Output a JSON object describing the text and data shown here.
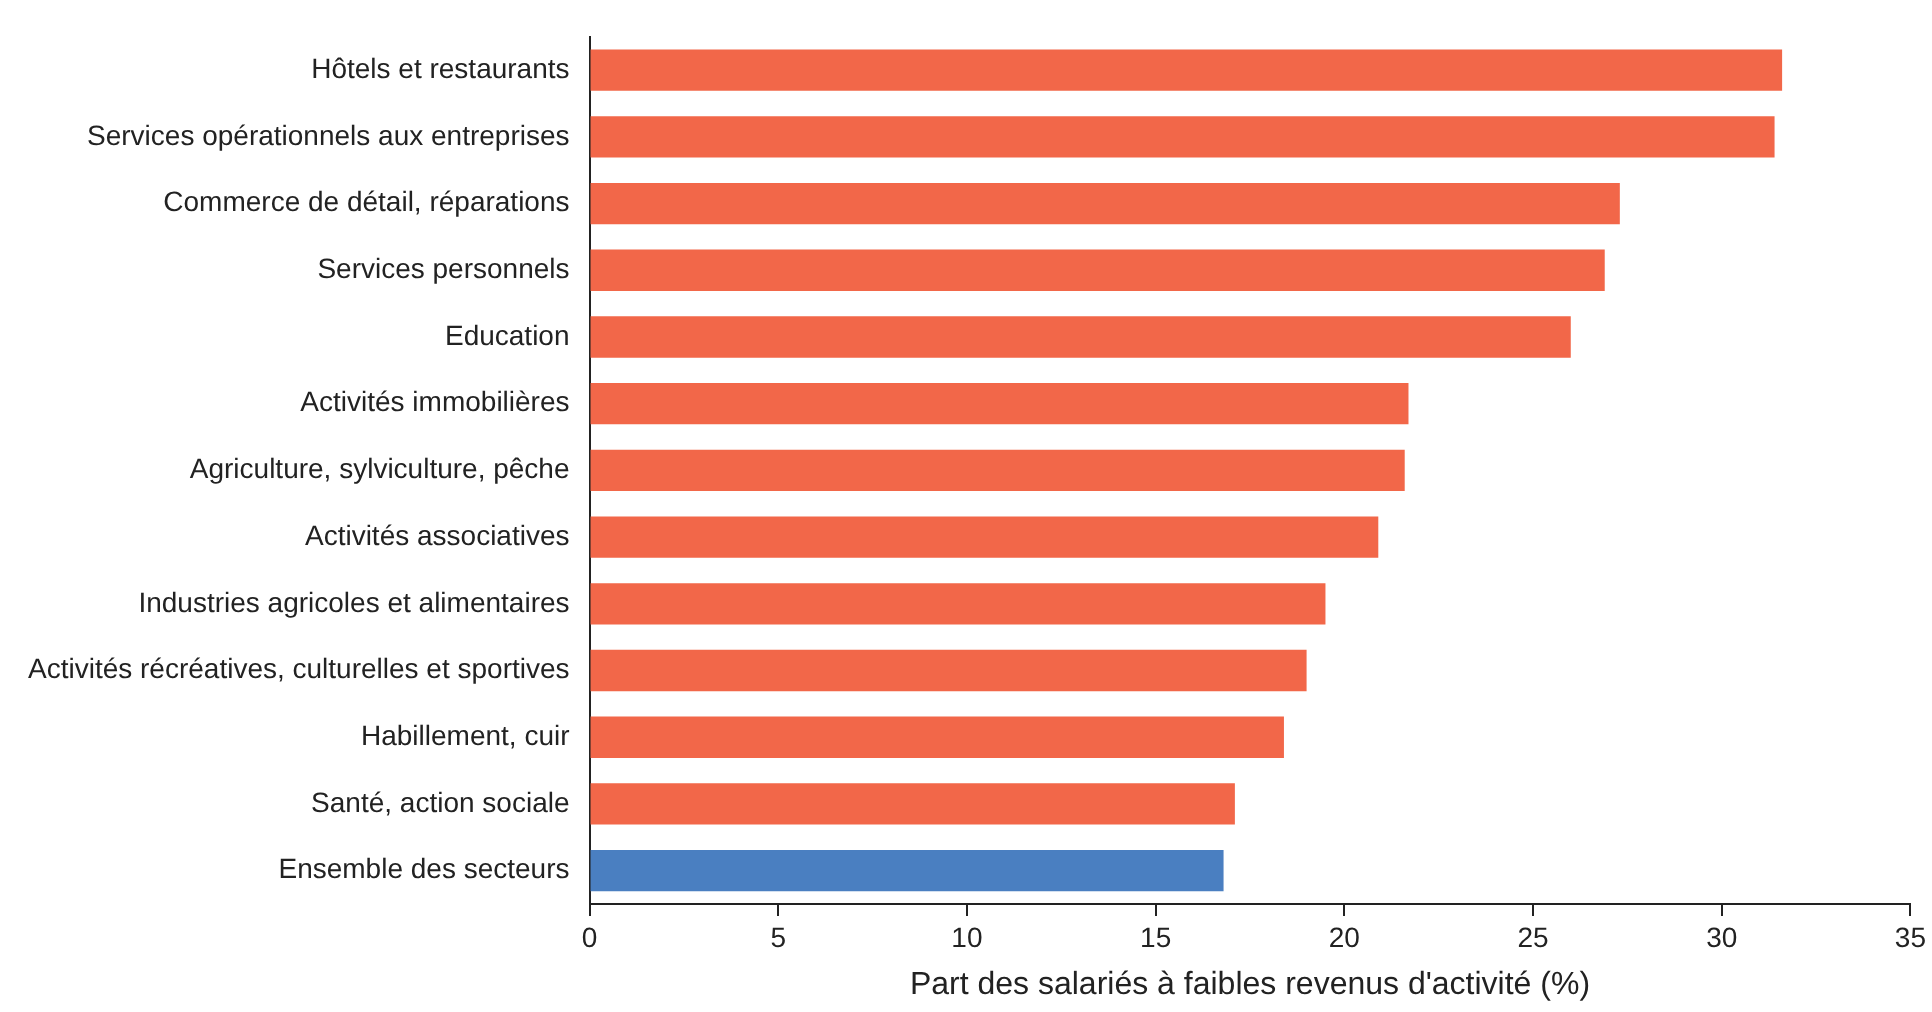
{
  "chart_data": {
    "type": "bar",
    "orientation": "horizontal",
    "xlabel": "Part des salariés à faibles revenus d'activité (%)",
    "categories": [
      "Hôtels et restaurants",
      "Services opérationnels aux entreprises",
      "Commerce de détail, réparations",
      "Services personnels",
      "Education",
      "Activités immobilières",
      "Agriculture, sylviculture, pêche",
      "Activités associatives",
      "Industries agricoles et alimentaires",
      "Activités récréatives, culturelles et sportives",
      "Habillement, cuir",
      "Santé, action sociale",
      "Ensemble des secteurs"
    ],
    "values": [
      31.6,
      31.4,
      27.3,
      26.9,
      26.0,
      21.7,
      21.6,
      20.9,
      19.5,
      19.0,
      18.4,
      17.1,
      16.8
    ],
    "colors": [
      "#f26749",
      "#f26749",
      "#f26749",
      "#f26749",
      "#f26749",
      "#f26749",
      "#f26749",
      "#f26749",
      "#f26749",
      "#f26749",
      "#f26749",
      "#f26749",
      "#4a7fc1"
    ],
    "xlim": [
      0,
      35
    ],
    "xticks": [
      0,
      5,
      10,
      15,
      20,
      25,
      30,
      35
    ],
    "grid": false,
    "legend": false
  }
}
